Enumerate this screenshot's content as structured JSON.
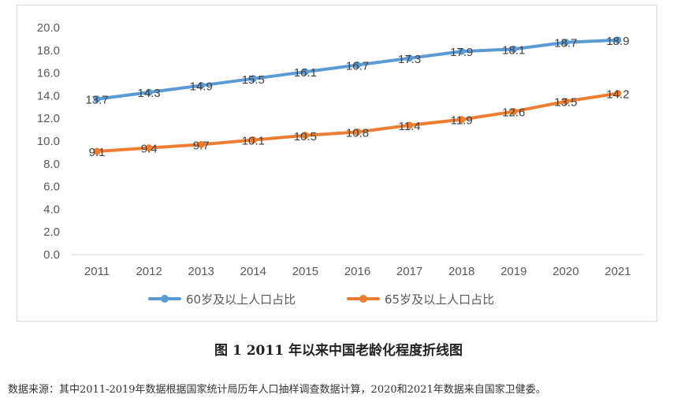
{
  "chart_data": {
    "type": "line",
    "categories": [
      "2011",
      "2012",
      "2013",
      "2014",
      "2015",
      "2016",
      "2017",
      "2018",
      "2019",
      "2020",
      "2021"
    ],
    "series": [
      {
        "name": "60岁及以上人口占比",
        "color": "#5b9bd5",
        "values": [
          13.7,
          14.3,
          14.9,
          15.5,
          16.1,
          16.7,
          17.3,
          17.9,
          18.1,
          18.7,
          18.9
        ],
        "labels": [
          "13.7",
          "14.3",
          "14.9",
          "15.5",
          "16.1",
          "16.7",
          "17.3",
          "17.9",
          "18.1",
          "18.7",
          "18.9"
        ]
      },
      {
        "name": "65岁及以上人口占比",
        "color": "#ed7d31",
        "values": [
          9.1,
          9.4,
          9.7,
          10.1,
          10.5,
          10.8,
          11.4,
          11.9,
          12.6,
          13.5,
          14.2
        ],
        "labels": [
          "9.1",
          "9.4",
          "9.7",
          "10.1",
          "10.5",
          "10.8",
          "11.4",
          "11.9",
          "12.6",
          "13.5",
          "14.2"
        ]
      }
    ],
    "ylim": [
      0,
      20
    ],
    "yticks": [
      "0.0",
      "2.0",
      "4.0",
      "6.0",
      "8.0",
      "10.0",
      "12.0",
      "14.0",
      "16.0",
      "18.0",
      "20.0"
    ],
    "grid": false,
    "legend": "bottom",
    "title": "",
    "xlabel": "",
    "ylabel": ""
  },
  "caption": "图 1  2011 年以来中国老龄化程度折线图",
  "source_note": "数据来源：其中2011-2019年数据根据国家统计局历年人口抽样调查数据计算，2020和2021年数据来自国家卫健委。"
}
